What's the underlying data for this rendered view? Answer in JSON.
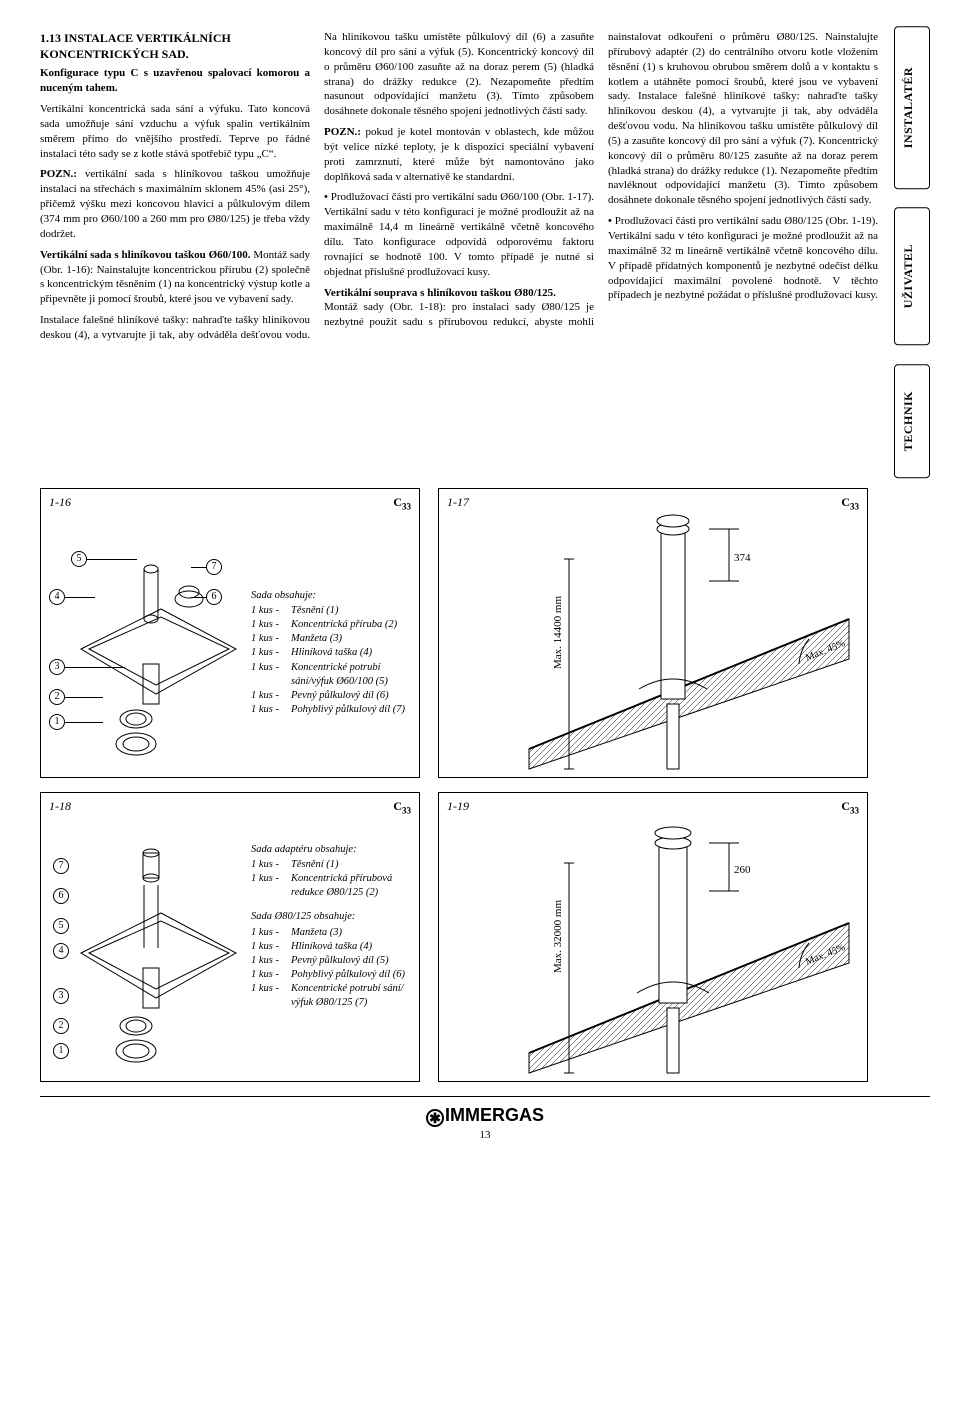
{
  "section": {
    "number": "1.13",
    "title": "INSTALACE VERTIKÁLNÍCH KONCENTRICKÝCH SAD.",
    "subtitle": "Konfigurace typu C s uzavřenou spalovací komorou a nuceným tahem.",
    "p1": "Vertikální koncentrická sada sání a výfuku. Tato koncová sada umožňuje sání vzduchu a výfuk spalin vertikálním směrem přímo do vnějšího prostředí. Teprve po řádné instalaci této sady se z kotle stává spotřebič typu „C“.",
    "p2_bold": "POZN.:",
    "p2": "vertikální sada s hliníkovou taškou umožňuje instalaci na střechách s maximálním sklonem 45% (asi 25°), přičemž výšku mezi koncovou hlavicí a půlkulovým dílem (374 mm pro Ø60/100 a 260 mm pro Ø80/125) je třeba vždy dodržet.",
    "p3_bold": "Vertikální sada s hliníkovou taškou Ø60/100.",
    "p3": "Montáž sady (Obr. 1-16): Nainstalujte koncentrickou přírubu (2) společně s koncentrickým těsněním (1) na koncentrický výstup kotle a připevněte ji pomocí šroubů, které jsou ve vybavení sady.",
    "p4": "Instalace falešné hliníkové tašky: nahraďte tašky hliníkovou deskou (4), a vytvarujte ji tak, aby odváděla dešťovou vodu. Na hliníkovou tašku umístěte půlkulový díl (6) a zasuňte koncový díl pro sání a výfuk (5). Koncentrický koncový díl o průměru Ø60/100 zasuňte až na doraz perem (5) (hladká strana) do drážky redukce (2). Nezapomeňte předtím nasunout odpovídající manžetu (3). Tímto způsobem dosáhnete dokonale těsného spojení jednotlivých částí sady.",
    "p5_bold": "POZN.:",
    "p5": "pokud je kotel montován v oblastech, kde můžou být velice nízké teploty, je k dispozici speciální vybavení proti zamrznutí, které může být namontováno jako doplňková sada v alternativě ke standardní.",
    "b1": "Prodlužovací části pro vertikální sadu Ø60/100 (Obr. 1-17). Vertikální sadu v této konfiguraci je možné prodloužit až na maximálně 14,4 m lineárně vertikálně včetně koncového dílu. Tato konfigurace odpovídá odporovému faktoru rovnající se hodnotě 100. V tomto případě je nutné si objednat příslušné prodlužovací kusy.",
    "p6_bold": "Vertikální souprava s hliníkovou taškou Ø80/125.",
    "p6": "Montáž sady (Obr. 1-18): pro instalaci sady Ø80/125 je nezbytné použít sadu s přírubovou redukcí, abyste mohli nainstalovat odkouření o průměru Ø80/125. Nainstalujte přírubový adaptér (2) do centrálního otvoru kotle vložením těsnění (1) s kruhovou obrubou směrem dolů a v kontaktu s kotlem a utáhněte pomocí šroubů, které jsou ve vybavení sady. Instalace falešné hliníkové tašky: nahraďte tašky hliníkovou deskou (4), a vytvarujte ji tak, aby odváděla dešťovou vodu. Na hliníkovou tašku umístěte půlkulový díl (5) a zasuňte koncový díl pro sání a výfuk (7). Koncentrický koncový díl o průměru 80/125 zasuňte až na doraz perem (hladká strana) do drážky redukce (1). Nezapomeňte předtím navléknout odpovídající manžetu (3). Tímto způsobem dosáhnete dokonale těsného spojení jednotlivých částí sady.",
    "b2": "Prodlužovací části pro vertikální sadu Ø80/125 (Obr. 1-19). Vertikální sadu v této konfiguraci je možné prodloužit až na maximálně 32 m lineárně vertikálně včetně koncového dílu. V případě přídatných komponentů je nezbytné odečíst délku odpovídající maximální povolené hodnotě. V těchto případech je nezbytné požádat o příslušné prodlužovací kusy."
  },
  "tabs": {
    "t1": "INSTALATÉR",
    "t2": "UŽIVATEL",
    "t3": "TECHNIK"
  },
  "fig16": {
    "num": "1-16",
    "code": "C",
    "code_sub": "33",
    "callouts": {
      "c1": "1",
      "c2": "2",
      "c3": "3",
      "c4": "4",
      "c5": "5",
      "c6": "6",
      "c7": "7"
    },
    "kit_title": "Sada obsahuje:",
    "items": [
      {
        "cnt": "1 kus -",
        "desc": "Těsnění (1)"
      },
      {
        "cnt": "1 kus -",
        "desc": "Koncentrická příruba (2)"
      },
      {
        "cnt": "1 kus -",
        "desc": "Manžeta (3)"
      },
      {
        "cnt": "1 kus -",
        "desc": "Hliníková taška (4)"
      },
      {
        "cnt": "1 kus -",
        "desc": "Koncentrické potrubí sání/výfuk Ø60/100 (5)"
      },
      {
        "cnt": "1 kus -",
        "desc": "Pevný půlkulový díl (6)"
      },
      {
        "cnt": "1 kus -",
        "desc": "Pohyblivý půlkulový díl (7)"
      }
    ]
  },
  "fig17": {
    "num": "1-17",
    "code": "C",
    "code_sub": "33",
    "dim_v": "374",
    "dim_h": "Max. 14400 mm",
    "angle": "Max. 45%"
  },
  "fig18": {
    "num": "1-18",
    "code": "C",
    "code_sub": "33",
    "callouts": {
      "c1": "1",
      "c2": "2",
      "c3": "3",
      "c4": "4",
      "c5": "5",
      "c6": "6",
      "c7": "7"
    },
    "kit1_title": "Sada adaptéru obsahuje:",
    "kit1": [
      {
        "cnt": "1 kus -",
        "desc": "Těsnění (1)"
      },
      {
        "cnt": "1 kus -",
        "desc": "Koncentrická přírubová redukce Ø80/125 (2)"
      }
    ],
    "kit2_title": "Sada Ø80/125 obsahuje:",
    "kit2": [
      {
        "cnt": "1 kus -",
        "desc": "Manžeta (3)"
      },
      {
        "cnt": "1 kus -",
        "desc": "Hliníková taška (4)"
      },
      {
        "cnt": "1 kus -",
        "desc": "Pevný půlkulový díl (5)"
      },
      {
        "cnt": "1 kus -",
        "desc": "Pohyblivý půlkulový díl (6)"
      },
      {
        "cnt": "1 kus -",
        "desc": "Koncentrické potrubí sání/ výfuk Ø80/125 (7)"
      }
    ]
  },
  "fig19": {
    "num": "1-19",
    "code": "C",
    "code_sub": "33",
    "dim_v": "260",
    "dim_h": "Max. 32000 mm",
    "angle": "Max. 45%"
  },
  "footer": {
    "brand": "IMMERGAS",
    "page": "13"
  }
}
